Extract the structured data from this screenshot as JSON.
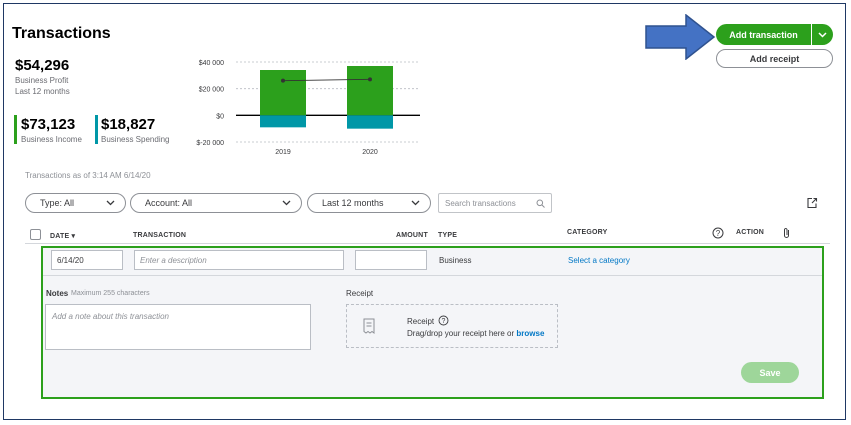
{
  "page": {
    "title": "Transactions"
  },
  "summary": {
    "profit_value": "$54,296",
    "profit_label": "Business Profit",
    "profit_period": "Last 12 months",
    "income_value": "$73,123",
    "income_label": "Business Income",
    "spending_value": "$18,827",
    "spending_label": "Business Spending"
  },
  "colors": {
    "brand_green": "#2ca01c",
    "spending_teal": "#0097a7",
    "annotation_arrow": "#4472c4",
    "link_blue": "#0077c5"
  },
  "actions": {
    "add_transaction": "Add transaction",
    "add_receipt": "Add receipt"
  },
  "chart_data": {
    "type": "bar",
    "categories": [
      "2019",
      "2020"
    ],
    "series": [
      {
        "name": "Business Income",
        "values": [
          34000,
          37000
        ]
      },
      {
        "name": "Business Spending",
        "values": [
          -9000,
          -10000
        ]
      },
      {
        "name": "Business Profit",
        "values": [
          26000,
          27000
        ]
      }
    ],
    "yticks": [
      "$40 000",
      "$20 000",
      "$0",
      "$-20 000"
    ],
    "ytick_values": [
      40000,
      20000,
      0,
      -20000
    ],
    "ylim": [
      -20000,
      40000
    ],
    "grid": true,
    "profit_style": "line-with-markers"
  },
  "filters": {
    "as_of": "Transactions as of 3:14 AM 6/14/20",
    "type": "Type: All",
    "account": "Account: All",
    "period": "Last 12 months",
    "search_placeholder": "Search transactions"
  },
  "table": {
    "headers": {
      "date": "DATE ▾",
      "transaction": "TRANSACTION",
      "amount": "AMOUNT",
      "type": "TYPE",
      "category": "CATEGORY",
      "action": "ACTION"
    }
  },
  "new_row": {
    "date": "6/14/20",
    "description_placeholder": "Enter a description",
    "amount": "",
    "type": "Business",
    "category_link": "Select a category",
    "notes_label": "Notes",
    "notes_hint": "Maximum 255 characters",
    "notes_placeholder": "Add a note about this transaction",
    "receipt_label": "Receipt",
    "receipt_title": "Receipt",
    "receipt_text": "Drag/drop your receipt here or",
    "receipt_browse": "browse",
    "save": "Save"
  },
  "icons": {
    "help": "?",
    "chevron": "▼",
    "export": "export-icon",
    "attachment": "paperclip-icon",
    "search": "search-icon",
    "receipt": "receipt-icon"
  }
}
